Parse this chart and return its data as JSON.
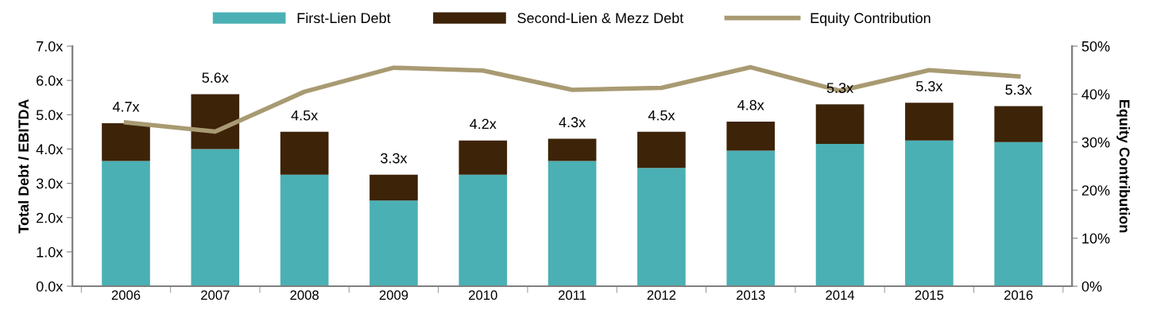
{
  "chart_data": {
    "type": "bar",
    "stacked": true,
    "categories": [
      "2006",
      "2007",
      "2008",
      "2009",
      "2010",
      "2011",
      "2012",
      "2013",
      "2014",
      "2015",
      "2016"
    ],
    "series": [
      {
        "name": "First-Lien Debt",
        "color": "#4ab0b4",
        "values": [
          3.65,
          4.0,
          3.25,
          2.5,
          3.25,
          3.65,
          3.45,
          3.95,
          4.15,
          4.25,
          4.2
        ]
      },
      {
        "name": "Second-Lien & Mezz Debt",
        "color": "#3d2308",
        "values": [
          1.1,
          1.6,
          1.25,
          0.75,
          1.0,
          0.65,
          1.05,
          0.85,
          1.15,
          1.1,
          1.05
        ]
      },
      {
        "name": "Equity Contribution",
        "type": "line",
        "axis": "y2",
        "color": "#a89a72",
        "marker": "none",
        "line_style": "solid",
        "values": [
          34.1,
          32.2,
          40.5,
          45.5,
          44.9,
          40.9,
          41.3,
          45.6,
          40.7,
          45.0,
          43.7
        ]
      }
    ],
    "totals": [
      "4.7x",
      "5.6x",
      "4.5x",
      "3.3x",
      "4.2x",
      "4.3x",
      "4.5x",
      "4.8x",
      "5.3x",
      "5.3x",
      "5.3x"
    ],
    "ylabel": "Total Debt / EBITDA",
    "y2label": "Equity Contribution",
    "ylim": [
      0,
      7
    ],
    "yticks": [
      {
        "value": 0,
        "label": "0.0x"
      },
      {
        "value": 1,
        "label": "1.0x"
      },
      {
        "value": 2,
        "label": "2.0x"
      },
      {
        "value": 3,
        "label": "3.0x"
      },
      {
        "value": 4,
        "label": "4.0x"
      },
      {
        "value": 5,
        "label": "5.0x"
      },
      {
        "value": 6,
        "label": "6.0x"
      },
      {
        "value": 7,
        "label": "7.0x"
      }
    ],
    "y2lim": [
      0,
      50
    ],
    "y2ticks": [
      {
        "value": 0,
        "label": "0%"
      },
      {
        "value": 10,
        "label": "10%"
      },
      {
        "value": 20,
        "label": "20%"
      },
      {
        "value": 30,
        "label": "30%"
      },
      {
        "value": 40,
        "label": "40%"
      },
      {
        "value": 50,
        "label": "50%"
      }
    ],
    "grid": false,
    "legend": "top"
  }
}
